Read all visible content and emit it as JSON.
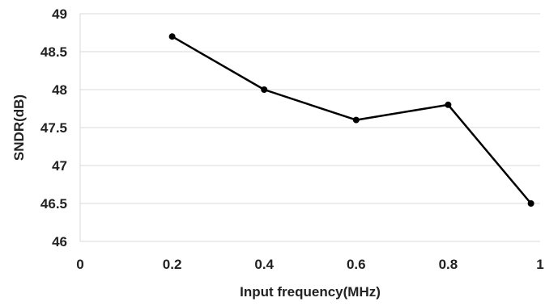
{
  "chart_data": {
    "type": "line",
    "title": "",
    "xlabel": "Input frequency(MHz)",
    "ylabel": "SNDR(dB)",
    "xlim": [
      0,
      1
    ],
    "ylim": [
      46,
      49
    ],
    "x_ticks": [
      "0",
      "0.2",
      "0.4",
      "0.6",
      "0.8",
      "1"
    ],
    "y_ticks": [
      "46",
      "46.5",
      "47",
      "47.5",
      "48",
      "48.5",
      "49"
    ],
    "grid": "horizontal",
    "legend": "none",
    "series": [
      {
        "x": [
          0.2,
          0.4,
          0.6,
          0.8,
          0.98
        ],
        "y": [
          48.7,
          48.0,
          47.6,
          47.8,
          46.5
        ],
        "line_color": "#000000",
        "marker_color": "#000000",
        "marker": "circle"
      }
    ],
    "colors": {
      "grid": "#d9d9d9",
      "axis": "#d9d9d9",
      "text": "#222222"
    }
  }
}
